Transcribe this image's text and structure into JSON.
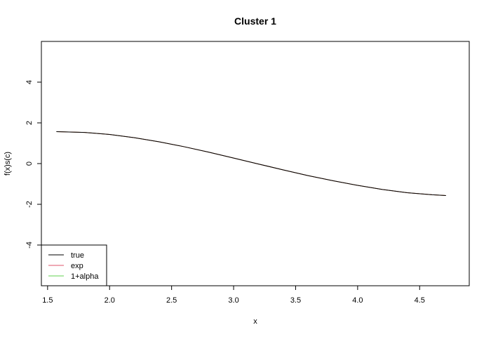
{
  "chart_data": {
    "type": "line",
    "title": "Cluster 1",
    "xlabel": "x",
    "ylabel": "f(x)s(c)",
    "xlim": [
      1.45,
      4.9
    ],
    "ylim": [
      -6,
      6
    ],
    "xticks": [
      1.5,
      2.0,
      2.5,
      3.0,
      3.5,
      4.0,
      4.5
    ],
    "xtick_labels": [
      "1.5",
      "2.0",
      "2.5",
      "3.0",
      "3.5",
      "4.0",
      "4.5"
    ],
    "yticks": [
      -4,
      -2,
      0,
      2,
      4
    ],
    "ytick_labels": [
      "-4",
      "-2",
      "0",
      "2",
      "4"
    ],
    "x": [
      1.571,
      1.8,
      2.0,
      2.2,
      2.4,
      2.6,
      2.8,
      3.0,
      3.2,
      3.4,
      3.6,
      3.8,
      4.0,
      4.2,
      4.4,
      4.6,
      4.712
    ],
    "series": [
      {
        "name": "true",
        "color": "#000000",
        "values": [
          1.57,
          1.53,
          1.43,
          1.27,
          1.07,
          0.83,
          0.56,
          0.27,
          -0.02,
          -0.31,
          -0.59,
          -0.84,
          -1.07,
          -1.27,
          -1.43,
          -1.53,
          -1.57
        ]
      },
      {
        "name": "exp",
        "color": "#df536b",
        "values": [
          1.57,
          1.53,
          1.43,
          1.27,
          1.07,
          0.83,
          0.56,
          0.27,
          -0.02,
          -0.31,
          -0.59,
          -0.84,
          -1.07,
          -1.27,
          -1.43,
          -1.53,
          -1.57
        ]
      },
      {
        "name": "1+alpha",
        "color": "#61d04f",
        "values": [
          1.57,
          1.53,
          1.43,
          1.27,
          1.07,
          0.83,
          0.56,
          0.27,
          -0.02,
          -0.31,
          -0.59,
          -0.84,
          -1.07,
          -1.27,
          -1.43,
          -1.53,
          -1.57
        ]
      }
    ],
    "legend_position": "bottom-left",
    "grid": false
  }
}
